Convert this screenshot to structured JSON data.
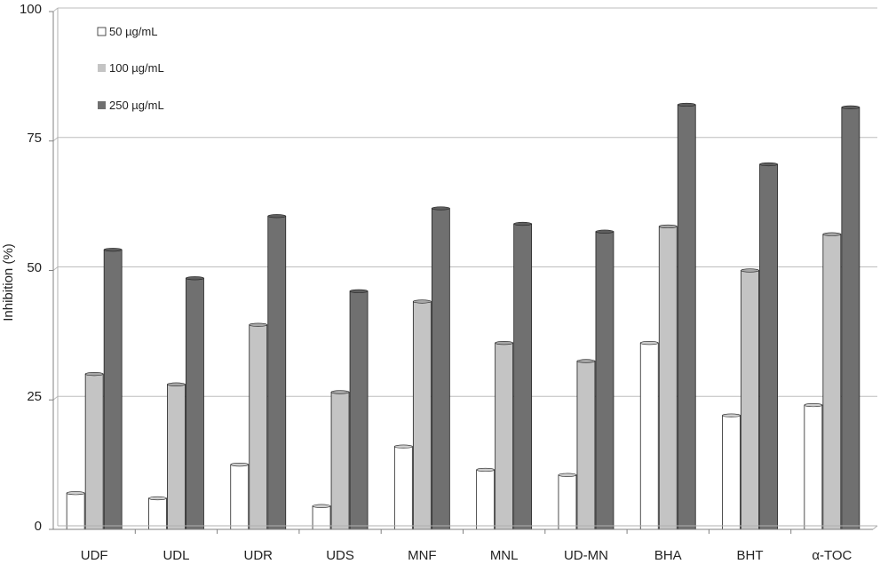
{
  "chart_data": {
    "type": "bar",
    "title": "",
    "xlabel": "",
    "ylabel": "Inhibition (%)",
    "ylim": [
      0,
      100
    ],
    "yticks": [
      "0",
      "25",
      "50",
      "75",
      "100"
    ],
    "grid": true,
    "legend_position": "top-left",
    "categories": [
      "UDF",
      "UDL",
      "UDR",
      "UDS",
      "MNF",
      "MNL",
      "UD-MN",
      "BHA",
      "BHT",
      "α-TOC"
    ],
    "series": [
      {
        "name": "50 µg/mL",
        "color": "#ffffff",
        "values": [
          7,
          6,
          12.5,
          4.5,
          16,
          11.5,
          10.5,
          36,
          22,
          24
        ]
      },
      {
        "name": "100 µg/mL",
        "color": "#c4c4c4",
        "values": [
          30,
          28,
          39.5,
          26.5,
          44,
          36,
          32.5,
          58.5,
          50,
          57
        ]
      },
      {
        "name": "250 µg/mL",
        "color": "#707070",
        "values": [
          54,
          48.5,
          60.5,
          46,
          62,
          59,
          57.5,
          82,
          70.5,
          81.5
        ]
      }
    ]
  }
}
